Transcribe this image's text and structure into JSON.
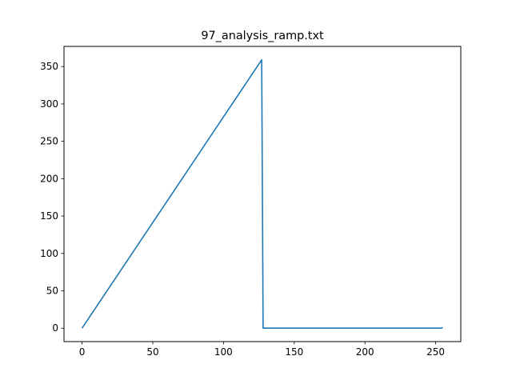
{
  "chart_data": {
    "type": "line",
    "title": "97_analysis_ramp.txt",
    "xlabel": "",
    "ylabel": "",
    "xlim": [
      -12.75,
      267.75
    ],
    "ylim": [
      -17.95,
      376.95
    ],
    "grid": false,
    "x_ticks": [
      0,
      50,
      100,
      150,
      200,
      250
    ],
    "y_ticks": [
      0,
      50,
      100,
      150,
      200,
      250,
      300,
      350
    ],
    "series": [
      {
        "color": "#1f77b4",
        "points": [
          [
            0,
            0
          ],
          [
            127,
            359
          ],
          [
            128,
            0
          ],
          [
            254,
            0
          ],
          [
            255,
            1
          ]
        ]
      }
    ]
  }
}
